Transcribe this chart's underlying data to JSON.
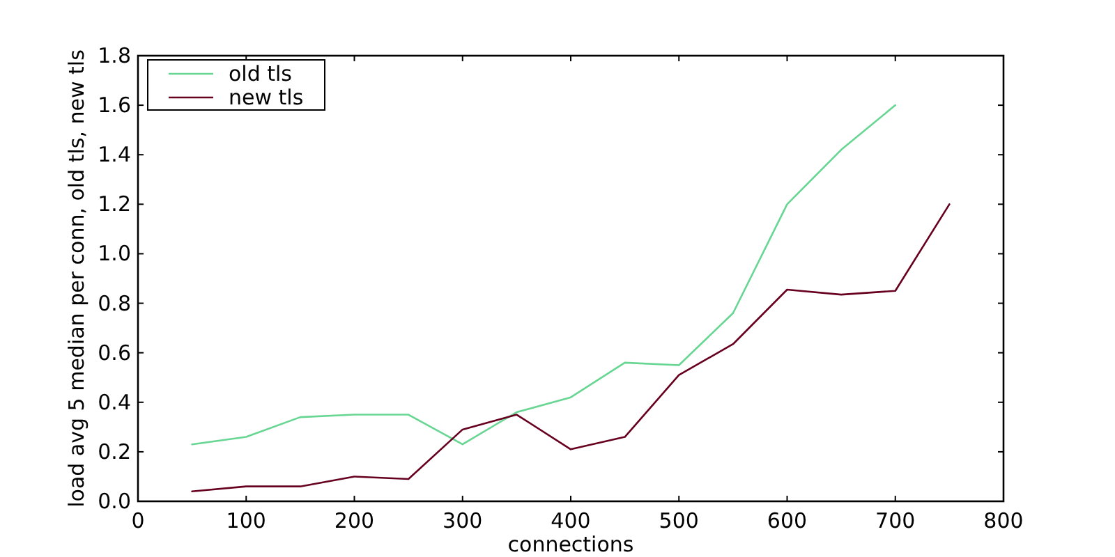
{
  "chart_data": {
    "type": "line",
    "xlabel": "connections",
    "ylabel": "load avg 5 median per conn, old tls, new tls",
    "x": [
      50,
      100,
      150,
      200,
      250,
      300,
      350,
      400,
      450,
      500,
      550,
      600,
      650,
      700,
      750
    ],
    "series": [
      {
        "name": "old tls",
        "color": "#66d692",
        "values": [
          0.23,
          0.26,
          0.34,
          0.35,
          0.35,
          0.23,
          0.36,
          0.42,
          0.56,
          0.55,
          0.76,
          1.2,
          1.42,
          1.6,
          null
        ]
      },
      {
        "name": "new tls",
        "color": "#67001f",
        "values": [
          0.04,
          0.06,
          0.06,
          0.1,
          0.09,
          0.29,
          0.35,
          0.21,
          0.26,
          0.51,
          0.635,
          0.855,
          0.835,
          0.85,
          1.2
        ]
      }
    ],
    "xlim": [
      0,
      800
    ],
    "xticks": [
      0,
      100,
      200,
      300,
      400,
      500,
      600,
      700,
      800
    ],
    "ylim": [
      0,
      1.8
    ],
    "yticks": [
      {
        "value": 0,
        "label": "0.0"
      },
      {
        "value": 0.2,
        "label": "0.2"
      },
      {
        "value": 0.4,
        "label": "0.4"
      },
      {
        "value": 0.6,
        "label": "0.6"
      },
      {
        "value": 0.8,
        "label": "0.8"
      },
      {
        "value": 1,
        "label": "1.0"
      },
      {
        "value": 1.2,
        "label": "1.2"
      },
      {
        "value": 1.4,
        "label": "1.4"
      },
      {
        "value": 1.6,
        "label": "1.6"
      },
      {
        "value": 1.8,
        "label": "1.8"
      }
    ],
    "legend": "top left",
    "grid": false
  }
}
